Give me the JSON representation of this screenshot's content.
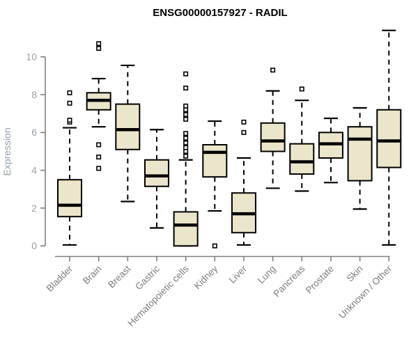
{
  "chart_data": {
    "type": "box",
    "title": "ENSG00000157927 - RADIL",
    "xlabel": "",
    "ylabel": "Expression",
    "ylim": [
      0,
      10
    ],
    "yticks": [
      0,
      2,
      4,
      6,
      8,
      10
    ],
    "grid": "off",
    "legend": "none",
    "categories": [
      "Bladder",
      "Brain",
      "Breast",
      "Gastric",
      "Hematopoietic cells",
      "Kidney",
      "Liver",
      "Lung",
      "Pancreas",
      "Prostate",
      "Skin",
      "Unknown / Other"
    ],
    "boxes": [
      {
        "category": "Bladder",
        "low": 0.05,
        "q1": 1.55,
        "median": 2.15,
        "q3": 3.5,
        "high": 6.25,
        "outliers": [
          6.55,
          6.65,
          7.55,
          8.1
        ]
      },
      {
        "category": "Brain",
        "low": 6.3,
        "q1": 7.2,
        "median": 7.7,
        "q3": 8.1,
        "high": 8.85,
        "outliers": [
          4.1,
          4.7,
          5.35,
          10.45,
          10.7
        ]
      },
      {
        "category": "Breast",
        "low": 2.35,
        "q1": 5.1,
        "median": 6.15,
        "q3": 7.5,
        "high": 9.55,
        "outliers": []
      },
      {
        "category": "Gastric",
        "low": 0.95,
        "q1": 3.15,
        "median": 3.7,
        "q3": 4.55,
        "high": 6.15,
        "outliers": []
      },
      {
        "category": "Hematopoietic cells",
        "low": 0.0,
        "q1": 0.0,
        "median": 1.1,
        "q3": 1.8,
        "high": 4.55,
        "outliers": [
          4.75,
          5.0,
          5.2,
          5.45,
          5.7,
          5.95,
          6.7,
          6.95,
          7.2,
          7.4,
          8.35,
          9.1
        ]
      },
      {
        "category": "Kidney",
        "low": 1.85,
        "q1": 3.65,
        "median": 4.95,
        "q3": 5.35,
        "high": 6.6,
        "outliers": [
          0.0
        ]
      },
      {
        "category": "Liver",
        "low": 0.05,
        "q1": 0.7,
        "median": 1.7,
        "q3": 2.8,
        "high": 4.65,
        "outliers": [
          6.0,
          6.55
        ]
      },
      {
        "category": "Lung",
        "low": 3.05,
        "q1": 5.0,
        "median": 5.55,
        "q3": 6.5,
        "high": 8.2,
        "outliers": [
          9.3
        ]
      },
      {
        "category": "Pancreas",
        "low": 2.9,
        "q1": 3.8,
        "median": 4.45,
        "q3": 5.4,
        "high": 7.7,
        "outliers": [
          8.3
        ]
      },
      {
        "category": "Prostate",
        "low": 3.35,
        "q1": 4.65,
        "median": 5.4,
        "q3": 6.0,
        "high": 6.75,
        "outliers": []
      },
      {
        "category": "Skin",
        "low": 1.95,
        "q1": 3.45,
        "median": 5.65,
        "q3": 6.3,
        "high": 7.3,
        "outliers": []
      },
      {
        "category": "Unknown / Other",
        "low": 0.05,
        "q1": 4.15,
        "median": 5.55,
        "q3": 7.2,
        "high": 11.4,
        "outliers": []
      }
    ],
    "colors": {
      "box_fill": "#ebe5cb",
      "line": "#000000",
      "axis": "#7f7f7f",
      "tick_label": "#97a1ab",
      "category_label": "#7d7d7d",
      "title": "#000000",
      "background": "#ffffff",
      "outlier_fill": "#ffffff"
    }
  }
}
